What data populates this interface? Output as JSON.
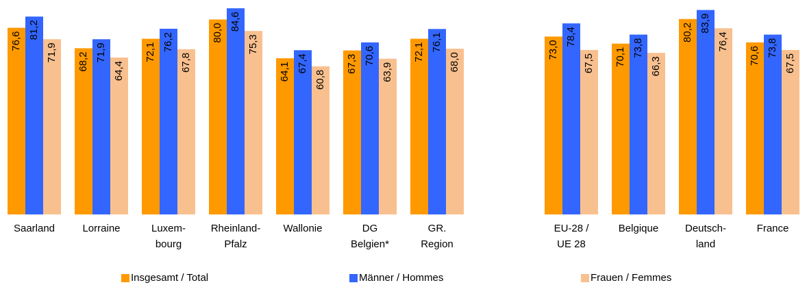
{
  "chart_data": {
    "type": "bar",
    "categories": [
      "Saarland",
      "Lorraine",
      "Luxem-\nbourg",
      "Rheinland-\nPfalz",
      "Wallonie",
      "DG\nBelgien*",
      "GR.\nRegion",
      "EU-28 /\nUE 28",
      "Belgique",
      "Deutsch-\nland",
      "France"
    ],
    "series": [
      {
        "name": "Insgesamt / Total",
        "color": "#ff9900",
        "values": [
          76.6,
          68.2,
          72.1,
          80.0,
          64.1,
          67.3,
          72.1,
          73.0,
          70.1,
          80.2,
          70.6
        ],
        "value_labels": [
          "76,6",
          "68,2",
          "72,1",
          "80,0",
          "64,1",
          "67,3",
          "72,1",
          "73,0",
          "70,1",
          "80,2",
          "70,6"
        ]
      },
      {
        "name": "Männer / Hommes",
        "color": "#3366ff",
        "values": [
          81.2,
          71.9,
          76.2,
          84.6,
          67.4,
          70.6,
          76.1,
          78.4,
          73.8,
          83.9,
          73.8
        ],
        "value_labels": [
          "81,2",
          "71,9",
          "76,2",
          "84,6",
          "67,4",
          "70,6",
          "76,1",
          "78,4",
          "73,8",
          "83,9",
          "73,8"
        ]
      },
      {
        "name": "Frauen / Femmes",
        "color": "#f9c08f",
        "values": [
          71.9,
          64.4,
          67.8,
          75.3,
          60.8,
          63.9,
          68.0,
          67.5,
          66.3,
          76.4,
          67.5
        ],
        "value_labels": [
          "71,9",
          "64,4",
          "67,8",
          "75,3",
          "60,8",
          "63,9",
          "68,0",
          "67,5",
          "66,3",
          "76,4",
          "67,5"
        ]
      }
    ],
    "ylim": [
      0,
      88
    ],
    "legend": "bottom"
  }
}
